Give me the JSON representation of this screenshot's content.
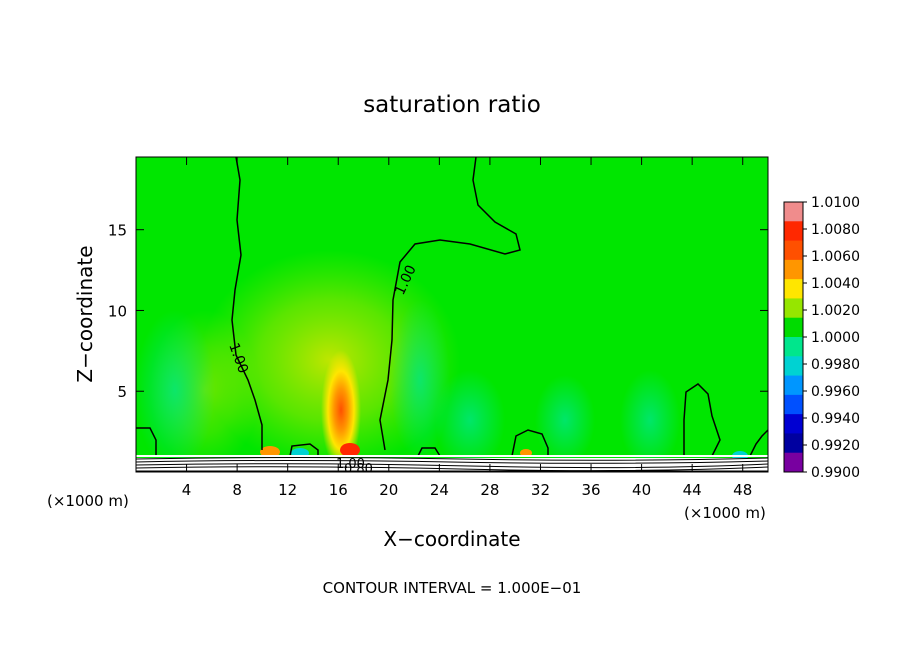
{
  "chart_data": {
    "type": "heatmap",
    "title": "saturation ratio",
    "xlabel": "X−coordinate",
    "ylabel": "Z−coordinate",
    "x_unit_left": "(×1000 m)",
    "x_unit_right": "(×1000 m)",
    "footer": "CONTOUR INTERVAL = 1.000E−01",
    "xlim": [
      0,
      50
    ],
    "ylim": [
      0,
      19.5
    ],
    "x_ticks": [
      "4",
      "8",
      "12",
      "16",
      "20",
      "24",
      "28",
      "32",
      "36",
      "40",
      "44",
      "48"
    ],
    "x_tick_values": [
      4,
      8,
      12,
      16,
      20,
      24,
      28,
      32,
      36,
      40,
      44,
      48
    ],
    "y_ticks": [
      "5",
      "10",
      "15"
    ],
    "y_tick_values": [
      5,
      10,
      15
    ],
    "colorbar": {
      "levels": [
        "1.0100",
        "1.0080",
        "1.0060",
        "1.0040",
        "1.0020",
        "1.0000",
        "0.9980",
        "0.9960",
        "0.9940",
        "0.9920",
        "0.9900"
      ],
      "colors": [
        "#f08c8c",
        "#ff2800",
        "#ff5000",
        "#ff9600",
        "#ffe600",
        "#96e600",
        "#00dc00",
        "#00e68c",
        "#00d2d2",
        "#0096ff",
        "#0050ff",
        "#0000d2",
        "#0000a0",
        "#7800a0"
      ]
    },
    "contour_labels": [
      "1.00",
      "1.00",
      "1.00",
      "0.80"
    ],
    "background_color": "#00e600"
  }
}
